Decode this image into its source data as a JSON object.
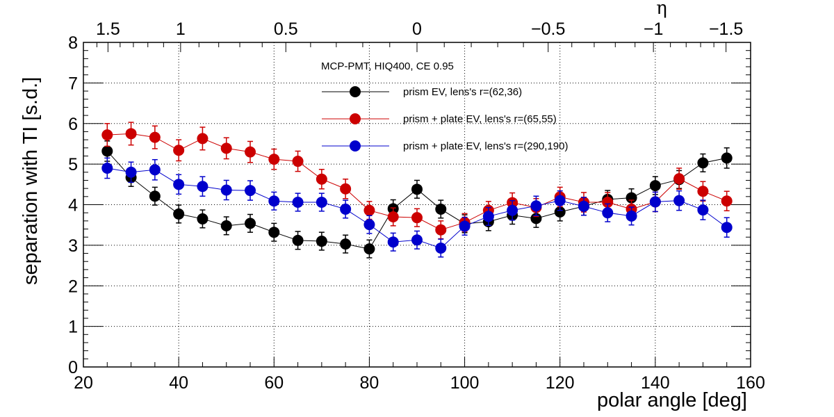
{
  "chart_data": {
    "type": "scatter",
    "title": "",
    "xlabel": "polar angle [deg]",
    "ylabel": "separation with TI [s.d.]",
    "xlim": [
      20,
      160
    ],
    "ylim": [
      0,
      8
    ],
    "grid": true,
    "x_ticks": [
      20,
      40,
      60,
      80,
      100,
      120,
      140,
      160
    ],
    "x_tick_labels": [
      "20",
      "40",
      "60",
      "80",
      "100",
      "120",
      "140",
      "160"
    ],
    "y_ticks": [
      0,
      1,
      2,
      3,
      4,
      5,
      6,
      7,
      8
    ],
    "y_tick_labels": [
      "0",
      "1",
      "2",
      "3",
      "4",
      "5",
      "6",
      "7",
      "8"
    ],
    "top_axis": {
      "label": "η",
      "ticks": [
        1.5,
        1,
        0.5,
        0,
        -0.5,
        -1,
        -1.5
      ],
      "tick_labels": [
        "1.5",
        "1",
        "0.5",
        "0",
        "−0.5",
        "−1",
        "−1.5"
      ]
    },
    "legend": {
      "header": "MCP-PMT, HIQ400, CE 0.95",
      "placement": "top-center"
    },
    "x": [
      25,
      30,
      35,
      40,
      45,
      50,
      55,
      60,
      65,
      70,
      75,
      80,
      85,
      90,
      95,
      100,
      105,
      110,
      115,
      120,
      125,
      130,
      135,
      140,
      145,
      150,
      155
    ],
    "series": [
      {
        "name": "prism EV, lens's r=(62,36)",
        "color": "#000000",
        "values": [
          5.32,
          4.67,
          4.21,
          3.77,
          3.65,
          3.48,
          3.54,
          3.32,
          3.12,
          3.1,
          3.03,
          2.91,
          3.9,
          4.38,
          3.89,
          3.53,
          3.58,
          3.74,
          3.66,
          3.82,
          3.96,
          4.13,
          4.17,
          4.47,
          4.62,
          5.03,
          5.15
        ],
        "errors": [
          0.25,
          0.22,
          0.22,
          0.22,
          0.22,
          0.22,
          0.22,
          0.22,
          0.22,
          0.22,
          0.22,
          0.22,
          0.22,
          0.22,
          0.22,
          0.22,
          0.22,
          0.22,
          0.22,
          0.22,
          0.22,
          0.22,
          0.22,
          0.22,
          0.22,
          0.22,
          0.25
        ]
      },
      {
        "name": "prism + plate EV, lens's r=(65,55)",
        "color": "#cc0000",
        "values": [
          5.72,
          5.75,
          5.66,
          5.34,
          5.63,
          5.39,
          5.3,
          5.12,
          5.07,
          4.63,
          4.39,
          3.86,
          3.7,
          3.68,
          3.38,
          3.56,
          3.86,
          4.05,
          3.93,
          4.19,
          4.06,
          4.06,
          3.89,
          4.07,
          4.64,
          4.33,
          4.09
        ],
        "errors": [
          0.28,
          0.28,
          0.28,
          0.26,
          0.28,
          0.26,
          0.26,
          0.25,
          0.25,
          0.24,
          0.24,
          0.22,
          0.22,
          0.22,
          0.22,
          0.22,
          0.22,
          0.24,
          0.22,
          0.24,
          0.24,
          0.24,
          0.22,
          0.24,
          0.26,
          0.24,
          0.24
        ]
      },
      {
        "name": "prism + plate EV, lens's r=(290,190)",
        "color": "#0000cc",
        "values": [
          4.9,
          4.8,
          4.86,
          4.5,
          4.45,
          4.36,
          4.35,
          4.09,
          4.06,
          4.06,
          3.89,
          3.51,
          3.08,
          3.13,
          2.93,
          3.47,
          3.71,
          3.86,
          3.97,
          4.1,
          3.96,
          3.8,
          3.72,
          4.07,
          4.1,
          3.87,
          3.44
        ],
        "errors": [
          0.25,
          0.25,
          0.25,
          0.24,
          0.24,
          0.24,
          0.24,
          0.22,
          0.22,
          0.22,
          0.22,
          0.22,
          0.22,
          0.22,
          0.22,
          0.22,
          0.22,
          0.24,
          0.24,
          0.24,
          0.22,
          0.22,
          0.22,
          0.24,
          0.24,
          0.24,
          0.24
        ]
      }
    ]
  }
}
